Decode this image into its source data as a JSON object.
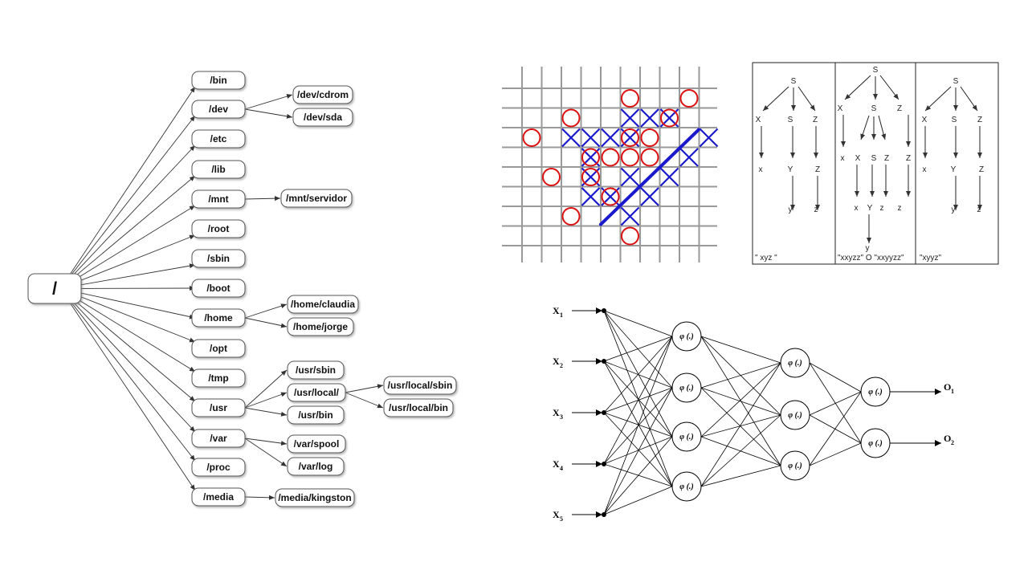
{
  "filesystem": {
    "root": "/",
    "level1": [
      "/bin",
      "/dev",
      "/etc",
      "/lib",
      "/mnt",
      "/root",
      "/sbin",
      "/boot",
      "/home",
      "/opt",
      "/tmp",
      "/usr",
      "/var",
      "/proc",
      "/media"
    ],
    "children": {
      "/dev": [
        "/dev/cdrom",
        "/dev/sda"
      ],
      "/mnt": [
        "/mnt/servidor"
      ],
      "/home": [
        "/home/claudia",
        "/home/jorge"
      ],
      "/usr": [
        "/usr/sbin",
        "/usr/local/",
        "/usr/bin"
      ],
      "/usr/local/": [
        "/usr/local/sbin",
        "/usr/local/bin"
      ],
      "/var": [
        "/var/spool",
        "/var/log"
      ],
      "/media": [
        "/media/kingston"
      ]
    }
  },
  "tictactoe": {
    "x_color": "#1a1acc",
    "o_color": "#dd1111",
    "grid_color": "#999999"
  },
  "grammar": {
    "panels": [
      {
        "caption": "\" xyz \""
      },
      {
        "caption": "\"xxyzz\" O \"xxyyzz\""
      },
      {
        "caption": "\"xyyz\""
      }
    ],
    "symbols": {
      "S": "S",
      "X": "X",
      "Z": "Z",
      "Y": "Y",
      "x": "x",
      "y": "y",
      "z": "z"
    }
  },
  "neural_net": {
    "inputs": [
      "X",
      "X",
      "X",
      "X",
      "X"
    ],
    "input_subs": [
      "1",
      "2",
      "3",
      "4",
      "5"
    ],
    "outputs": [
      "O",
      "O"
    ],
    "output_subs": [
      "1",
      "2"
    ],
    "neuron_label": "φ (.)",
    "layers": [
      4,
      3,
      2
    ]
  }
}
